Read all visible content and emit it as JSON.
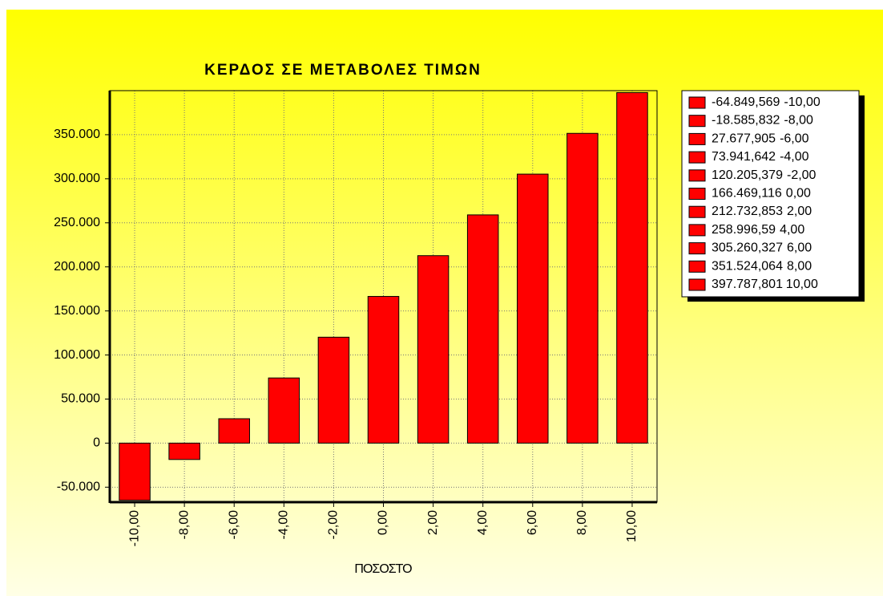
{
  "chart_data": {
    "type": "bar",
    "title": "ΚΕΡΔΟΣ ΣΕ ΜΕΤΑΒΟΛΕΣ ΤΙΜΩΝ",
    "x_label": "ΠΟΣΟΣΤΟ",
    "categories": [
      "-10,00",
      "-8,00",
      "-6,00",
      "-4,00",
      "-2,00",
      "0,00",
      "2,00",
      "4,00",
      "6,00",
      "8,00",
      "10,00"
    ],
    "values": [
      -64849.569,
      -18585.832,
      27677.905,
      73941.642,
      120205.379,
      166469.116,
      212732.853,
      258996.59,
      305260.327,
      351524.064,
      397787.801
    ],
    "value_labels": [
      "-64.849,569",
      "-18.585,832",
      "27.677,905",
      "73.941,642",
      "120.205,379",
      "166.469,116",
      "212.732,853",
      "258.996,59",
      "305.260,327",
      "351.524,064",
      "397.787,801"
    ],
    "color": "#ff0000",
    "ylim": [
      -67000,
      400000
    ],
    "yticks": [
      {
        "value": -50000,
        "label": "-50.000"
      },
      0,
      {
        "value": 50000,
        "label": "50.000"
      },
      {
        "value": 100000,
        "label": "100.000"
      },
      {
        "value": 150000,
        "label": "150.000"
      },
      {
        "value": 200000,
        "label": "200.000"
      },
      {
        "value": 250000,
        "label": "250.000"
      },
      {
        "value": 300000,
        "label": "300.000"
      },
      {
        "value": 350000,
        "label": "350.000"
      }
    ],
    "grid": true,
    "legend": "right"
  }
}
